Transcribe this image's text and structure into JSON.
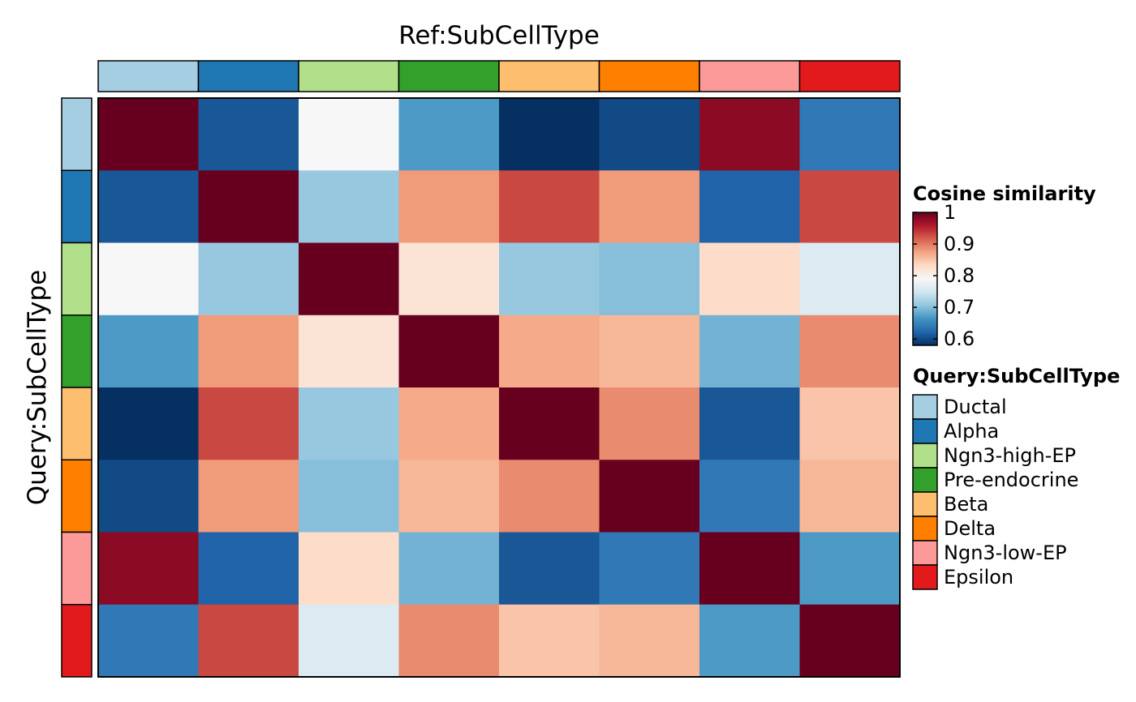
{
  "chart_data": {
    "type": "heatmap",
    "title": "",
    "xlabel": "Ref:SubCellType",
    "ylabel": "Query:SubCellType",
    "categories": [
      "Ductal",
      "Alpha",
      "Ngn3-high-EP",
      "Pre-endocrine",
      "Beta",
      "Delta",
      "Ngn3-low-EP",
      "Epsilon"
    ],
    "category_colors": [
      "#A6CEE3",
      "#1F78B4",
      "#B2DF8A",
      "#33A02C",
      "#FDBF6F",
      "#FF7F00",
      "#FB9A99",
      "#E31A1C"
    ],
    "matrix": [
      [
        1.0,
        0.61,
        0.79,
        0.67,
        0.58,
        0.6,
        0.98,
        0.64
      ],
      [
        0.61,
        1.0,
        0.71,
        0.88,
        0.93,
        0.88,
        0.62,
        0.93
      ],
      [
        0.79,
        0.71,
        1.0,
        0.82,
        0.71,
        0.7,
        0.83,
        0.76
      ],
      [
        0.67,
        0.88,
        0.82,
        1.0,
        0.87,
        0.86,
        0.69,
        0.89
      ],
      [
        0.58,
        0.93,
        0.71,
        0.87,
        1.0,
        0.89,
        0.61,
        0.85
      ],
      [
        0.6,
        0.88,
        0.7,
        0.86,
        0.89,
        1.0,
        0.64,
        0.86
      ],
      [
        0.98,
        0.62,
        0.83,
        0.69,
        0.61,
        0.64,
        1.0,
        0.67
      ],
      [
        0.64,
        0.93,
        0.76,
        0.89,
        0.85,
        0.86,
        0.67,
        1.0
      ]
    ],
    "colorbar": {
      "title": "Cosine similarity",
      "min": 0.58,
      "max": 1.0,
      "ticks": [
        "1",
        "0.9",
        "0.8",
        "0.7",
        "0.6"
      ],
      "tick_values": [
        1.0,
        0.9,
        0.8,
        0.7,
        0.6
      ],
      "palette": [
        "#053061",
        "#2166AC",
        "#4393C3",
        "#92C5DE",
        "#D1E5F0",
        "#F7F7F7",
        "#FDDBC7",
        "#F4A582",
        "#D6604D",
        "#B2182B",
        "#67001F"
      ]
    },
    "legend": {
      "title": "Query:SubCellType",
      "placement": "right"
    }
  }
}
